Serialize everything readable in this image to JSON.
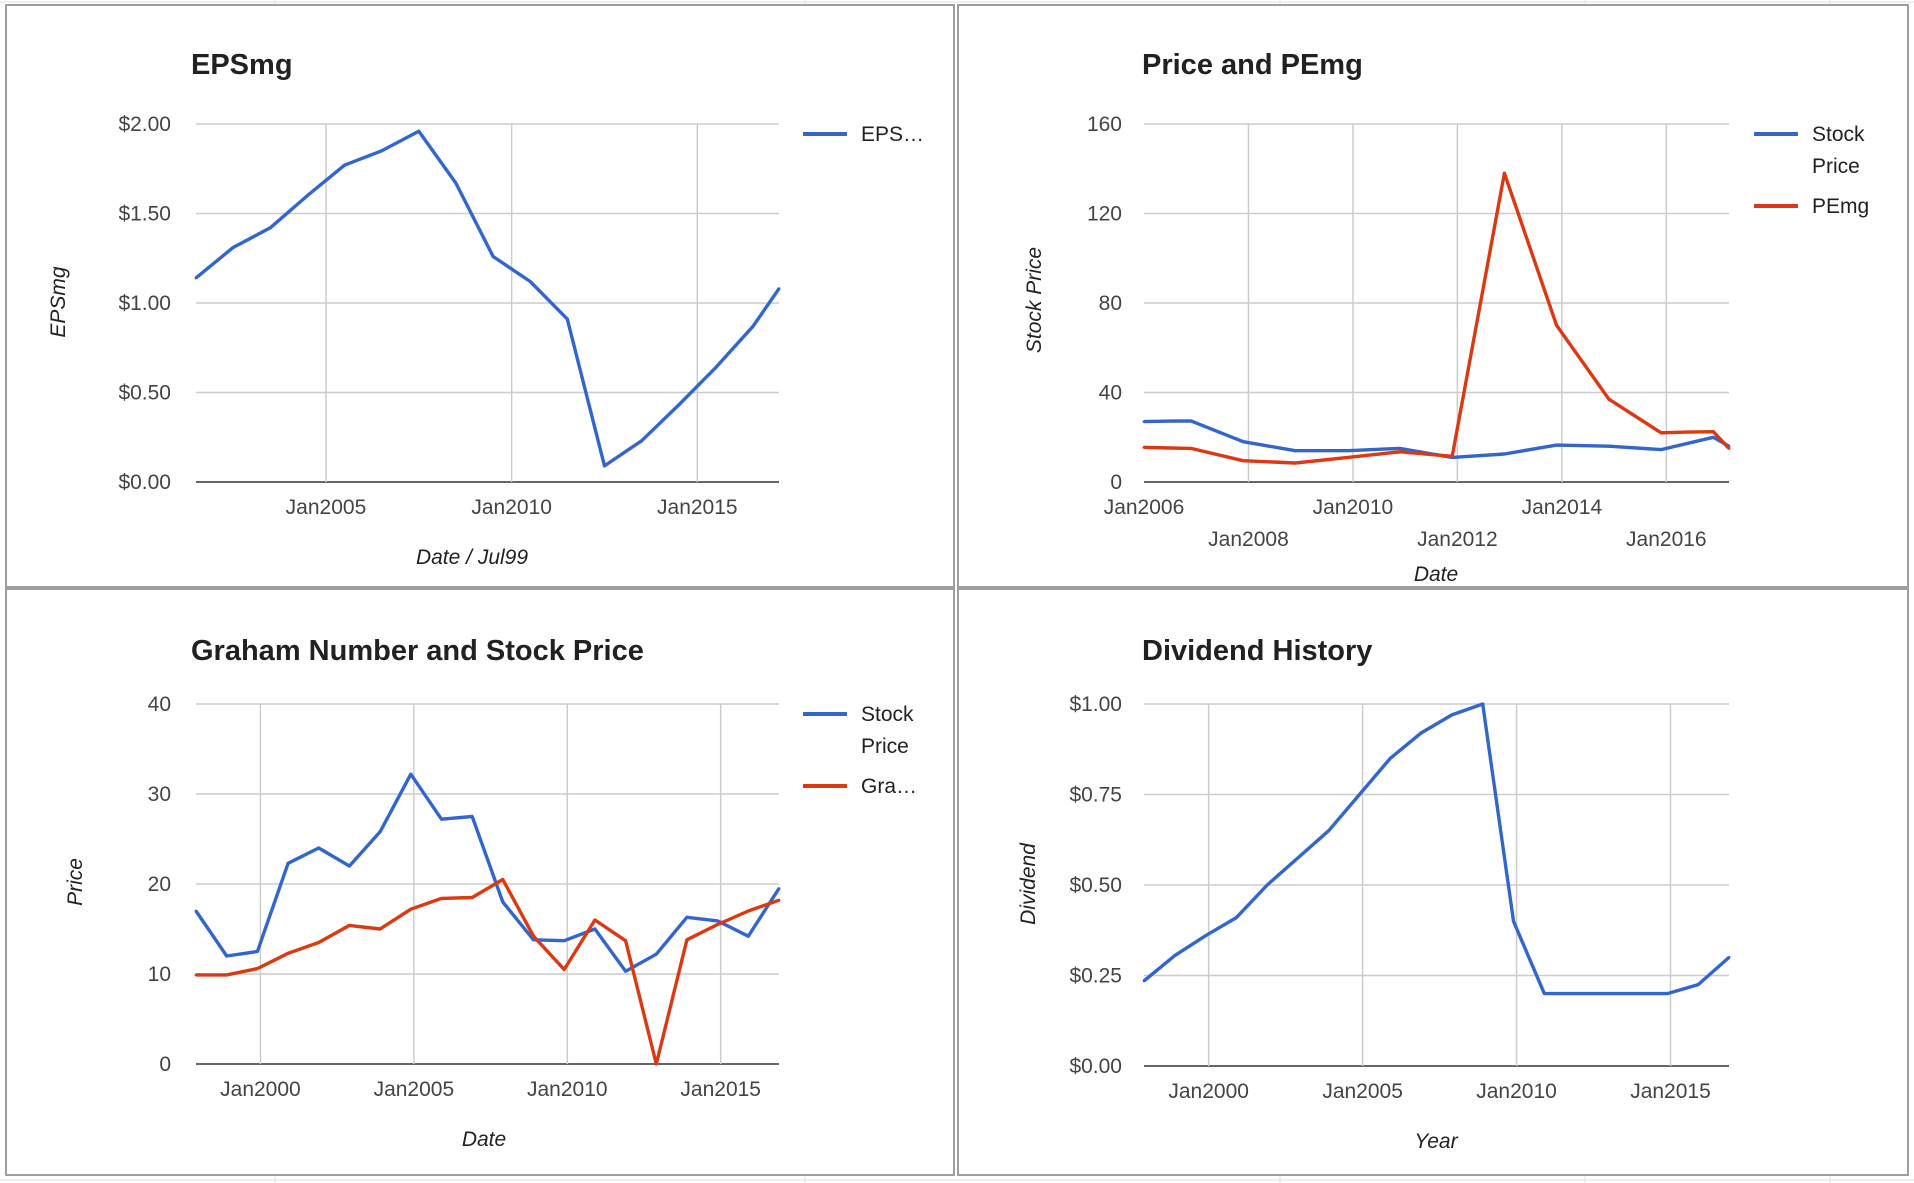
{
  "colors": {
    "blue": "#3366cc",
    "red": "#dc3912",
    "grid": "#cccccc",
    "sheet_grid": "#e2e2e2"
  },
  "chart_data": [
    {
      "type": "line",
      "title": "EPSmg",
      "xlabel": "Date / Jul99",
      "ylabel": "EPSmg",
      "x_ticks": [
        "Jan2005",
        "Jan2010",
        "Jan2015"
      ],
      "y_ticks": [
        "$0.00",
        "$0.50",
        "$1.00",
        "$1.50",
        "$2.00"
      ],
      "xlim": [
        2001.5,
        2017.2
      ],
      "ylim": [
        0,
        2
      ],
      "grid": true,
      "legend": "right",
      "series": [
        {
          "name": "EPS…",
          "color": "#3366cc",
          "x": [
            2001.5,
            2002.5,
            2003.5,
            2004.5,
            2005.5,
            2006.5,
            2007.5,
            2008.5,
            2009.5,
            2010.5,
            2011.5,
            2012.5,
            2013.5,
            2014.5,
            2015.5,
            2016.5,
            2017.2
          ],
          "y": [
            1.14,
            1.31,
            1.42,
            1.6,
            1.77,
            1.85,
            1.96,
            1.67,
            1.26,
            1.12,
            0.91,
            0.09,
            0.23,
            0.43,
            0.64,
            0.87,
            1.08
          ]
        }
      ]
    },
    {
      "type": "line",
      "title": "Price and PEmg",
      "xlabel": "Date",
      "ylabel": "Stock Price",
      "x_ticks": [
        "Jan2006",
        "Jan2008",
        "Jan2010",
        "Jan2012",
        "Jan2014",
        "Jan2016"
      ],
      "y_ticks": [
        "0",
        "40",
        "80",
        "120",
        "160"
      ],
      "xlim": [
        2006,
        2017.2
      ],
      "ylim": [
        0,
        160
      ],
      "grid": true,
      "legend": "right",
      "series": [
        {
          "name": "Stock Price",
          "color": "#3366cc",
          "x": [
            2006,
            2006.5,
            2006.9,
            2007.9,
            2008.9,
            2009.9,
            2010.9,
            2011.9,
            2012.9,
            2013.9,
            2014.9,
            2015.9,
            2016.9,
            2017.2
          ],
          "y": [
            27,
            27.2,
            27.3,
            18,
            14,
            14,
            15,
            11,
            12.5,
            16.5,
            16,
            14.5,
            20,
            16
          ]
        },
        {
          "name": "PEmg",
          "color": "#dc3912",
          "x": [
            2006,
            2006.5,
            2006.9,
            2007.9,
            2008.9,
            2009.9,
            2010.9,
            2011.9,
            2012.9,
            2013.9,
            2014.9,
            2015.9,
            2016.4,
            2016.9,
            2017.2
          ],
          "y": [
            15.5,
            15.2,
            15,
            9.5,
            8.5,
            11,
            13.5,
            11.5,
            138,
            70,
            37,
            22,
            22.3,
            22.5,
            15
          ]
        }
      ]
    },
    {
      "type": "line",
      "title": "Graham Number and Stock Price",
      "xlabel": "Date",
      "ylabel": "Price",
      "x_ticks": [
        "Jan2000",
        "Jan2005",
        "Jan2010",
        "Jan2015"
      ],
      "y_ticks": [
        "0",
        "10",
        "20",
        "30",
        "40"
      ],
      "xlim": [
        1997.9,
        2016.9
      ],
      "ylim": [
        0,
        40
      ],
      "grid": true,
      "legend": "right",
      "series": [
        {
          "name": "Stock Price",
          "color": "#3366cc",
          "x": [
            1997.9,
            1998.9,
            1999.9,
            2000.9,
            2001.9,
            2002.9,
            2003.9,
            2004.9,
            2005.9,
            2006.9,
            2007.9,
            2008.9,
            2009.9,
            2010.9,
            2011.9,
            2012.9,
            2013.9,
            2014.9,
            2015.9,
            2016.9
          ],
          "y": [
            17,
            12,
            12.5,
            22.3,
            24,
            22,
            25.8,
            32.2,
            27.2,
            27.5,
            18,
            13.8,
            13.7,
            15,
            10.3,
            12.2,
            16.3,
            15.9,
            14.2,
            19.5
          ]
        },
        {
          "name": "Gra…",
          "color": "#dc3912",
          "x": [
            1997.9,
            1998.9,
            1999.9,
            2000.9,
            2001.9,
            2002.9,
            2003.9,
            2004.9,
            2005.9,
            2006.9,
            2007.9,
            2008.9,
            2009.9,
            2010.9,
            2011.9,
            2012.9,
            2013.9,
            2014.9,
            2015.9,
            2016.9
          ],
          "y": [
            9.9,
            9.9,
            10.6,
            12.3,
            13.5,
            15.4,
            15,
            17.2,
            18.4,
            18.5,
            20.5,
            14.2,
            10.5,
            16,
            13.7,
            0,
            13.8,
            15.5,
            17,
            18.2
          ]
        }
      ]
    },
    {
      "type": "line",
      "title": "Dividend History",
      "xlabel": "Year",
      "ylabel": "Dividend",
      "x_ticks": [
        "Jan2000",
        "Jan2005",
        "Jan2010",
        "Jan2015"
      ],
      "y_ticks": [
        "$0.00",
        "$0.25",
        "$0.50",
        "$0.75",
        "$1.00"
      ],
      "xlim": [
        1997.9,
        2016.9
      ],
      "ylim": [
        0,
        1
      ],
      "grid": true,
      "legend": "none",
      "series": [
        {
          "name": "Dividend",
          "color": "#3366cc",
          "x": [
            1997.9,
            1998.9,
            1999.9,
            2000.9,
            2001.9,
            2002.9,
            2003.9,
            2004.9,
            2005.9,
            2006.9,
            2007.9,
            2008.9,
            2009.9,
            2010.9,
            2011.9,
            2012.9,
            2013.9,
            2014.9,
            2015.9,
            2016.9
          ],
          "y": [
            0.235,
            0.305,
            0.36,
            0.41,
            0.5,
            0.575,
            0.65,
            0.75,
            0.85,
            0.92,
            0.97,
            1.0,
            0.4,
            0.2,
            0.2,
            0.2,
            0.2,
            0.2,
            0.225,
            0.3
          ]
        }
      ]
    }
  ]
}
